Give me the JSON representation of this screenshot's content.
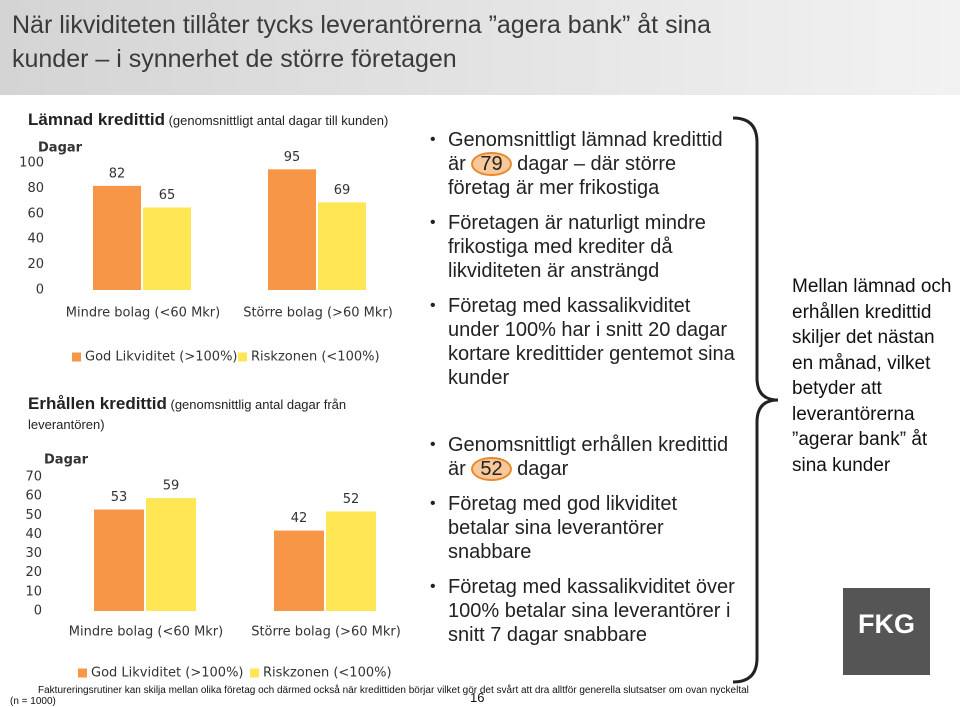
{
  "header": {
    "title": "När likviditeten tillåter tycks leverantörerna ”agera bank” åt sina kunder – i synnerhet de större företagen"
  },
  "chart_data": [
    {
      "type": "bar",
      "title": "Lämnad kredittid",
      "subtitle": "(genomsnittligt antal dagar till kunden)",
      "y_label": "Dagar",
      "categories": [
        "Mindre bolag (<60 Mkr)",
        "Större bolag (>60 Mkr)"
      ],
      "series": [
        {
          "name": "God Likviditet (>100%)",
          "color": "#f79646",
          "values": [
            82,
            95
          ]
        },
        {
          "name": "Riskzonen (<100%)",
          "color": "#ffe655",
          "values": [
            65,
            69
          ]
        }
      ],
      "ylim": [
        0,
        100
      ],
      "yticks": [
        0,
        20,
        40,
        60,
        80,
        100
      ],
      "grid": false,
      "legend": "bottom"
    },
    {
      "type": "bar",
      "title": "Erhållen kredittid",
      "subtitle": "(genomsnittlig antal dagar från leverantören)",
      "y_label": "Dagar",
      "categories": [
        "Mindre bolag (<60 Mkr)",
        "Större bolag (>60 Mkr)"
      ],
      "series": [
        {
          "name": "God Likviditet (>100%)",
          "color": "#f79646",
          "values": [
            53,
            42
          ]
        },
        {
          "name": "Riskzonen (<100%)",
          "color": "#ffe655",
          "values": [
            59,
            52
          ]
        }
      ],
      "ylim": [
        0,
        70
      ],
      "yticks": [
        0,
        10,
        20,
        30,
        40,
        50,
        60,
        70
      ],
      "grid": false,
      "legend": "bottom"
    }
  ],
  "bullet_groups": [
    [
      {
        "text": "Genomsnittligt lämnad kredittid är",
        "highlight": "79",
        "after": "dagar – där större företag är mer frikostiga"
      },
      {
        "text": "Företagen är naturligt mindre frikostiga med krediter då likviditeten är ansträngd"
      },
      {
        "text": "Företag med kassalikviditet under 100% har i snitt 20 dagar kortare kredittider gentemot sina kunder"
      }
    ],
    [
      {
        "text": "Genomsnittligt erhållen kredittid är",
        "highlight": "52",
        "after": "dagar"
      },
      {
        "text": "Företag med god likviditet betalar sina leverantörer snabbare"
      },
      {
        "text": "Företag med kassalikviditet över 100% betalar sina leverantörer i snitt 7 dagar snabbare"
      }
    ]
  ],
  "summary": "Mellan lämnad och erhållen kredittid skiljer det nästan en månad, vilket betyder att leverantörerna ”agerar bank” åt sina kunder",
  "logo": "FKG",
  "footer": {
    "sample": "(n = 1000)",
    "note": "Faktureringsrutiner kan skilja mellan olika företag och därmed också när kredittiden börjar vilket gör det svårt att dra alltför generella slutsatser om ovan nyckeltal",
    "page": "16"
  }
}
